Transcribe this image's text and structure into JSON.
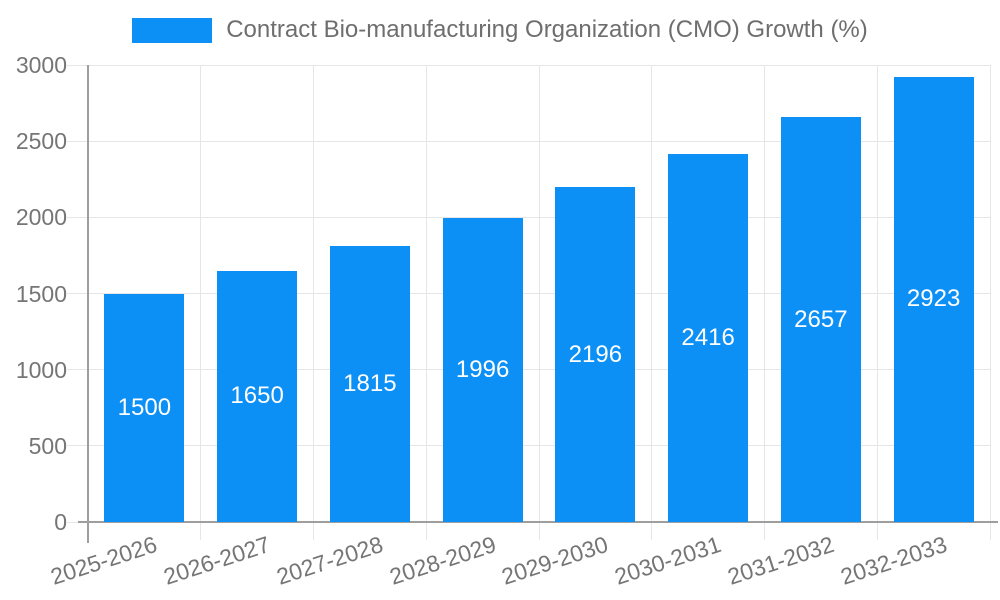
{
  "chart_data": {
    "type": "bar",
    "title": "Contract Bio-manufacturing Organization (CMO) Growth (%)",
    "categories": [
      "2025-2026",
      "2026-2027",
      "2027-2028",
      "2028-2029",
      "2029-2030",
      "2030-2031",
      "2031-2032",
      "2032-2033"
    ],
    "values": [
      1500,
      1650,
      1815,
      1996,
      2196,
      2416,
      2657,
      2923
    ],
    "xlabel": "",
    "ylabel": "",
    "ylim": [
      0,
      3000
    ],
    "yticks": [
      0,
      500,
      1000,
      1500,
      2000,
      2500,
      3000
    ],
    "grid": true,
    "legend_position": "top",
    "value_label_position": "inside-middle"
  },
  "colors": {
    "bar": "#0d90f5",
    "grid": "#e6e6e6",
    "axis": "#9e9e9e",
    "tick_label": "#757575",
    "legend_text": "#6e6e6e",
    "value_label": "#ffffff",
    "background": "#ffffff"
  }
}
